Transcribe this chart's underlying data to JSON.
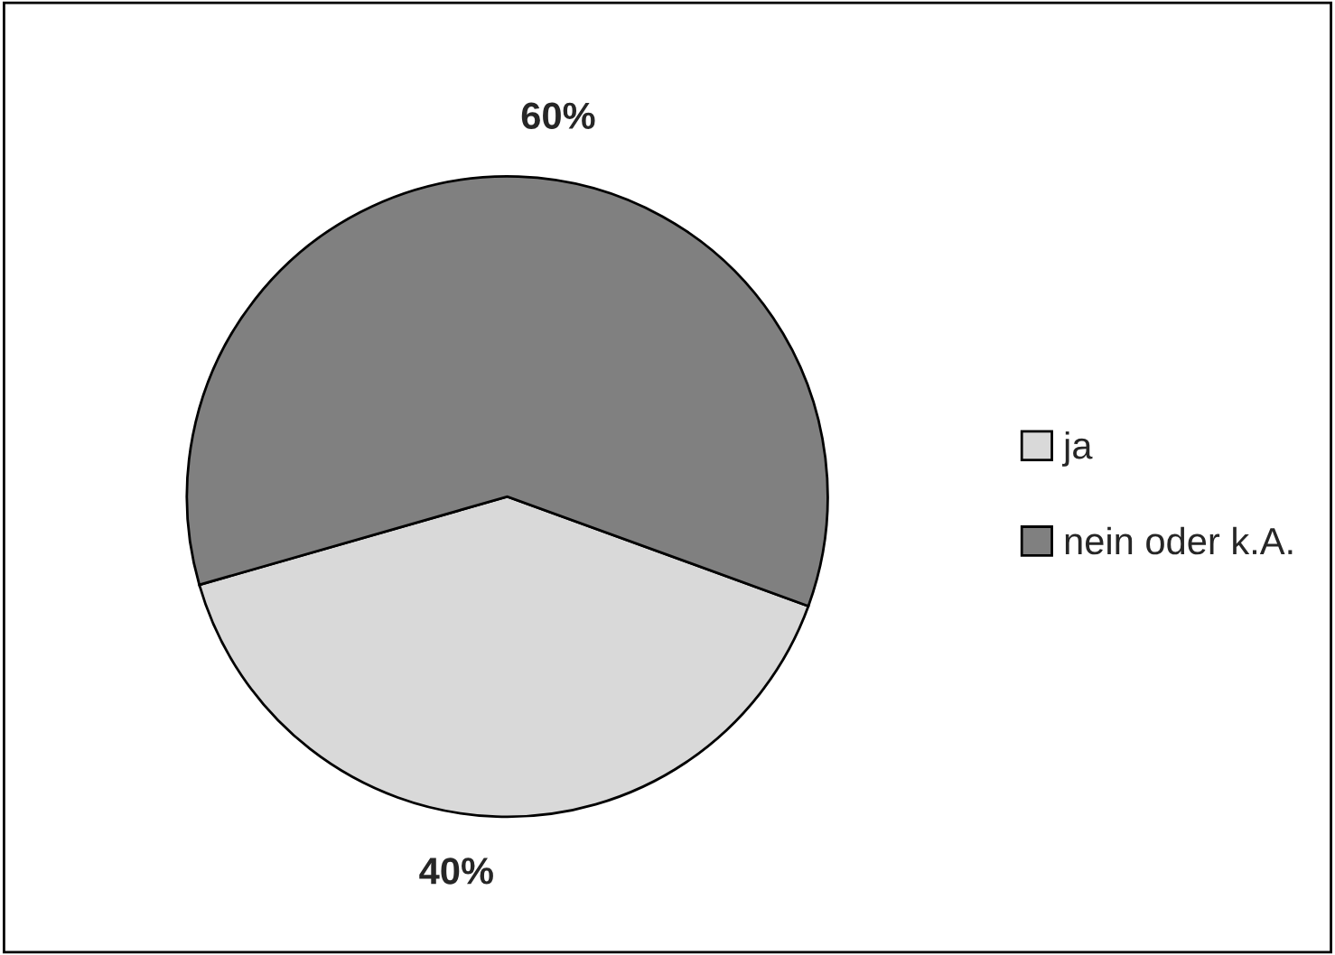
{
  "chart_data": {
    "type": "pie",
    "categories": [
      "ja",
      "nein oder k.A."
    ],
    "values": [
      40,
      60
    ],
    "colors": [
      "#d9d9d9",
      "#808080"
    ],
    "value_labels": [
      "40%",
      "60%"
    ],
    "legend": "right"
  }
}
